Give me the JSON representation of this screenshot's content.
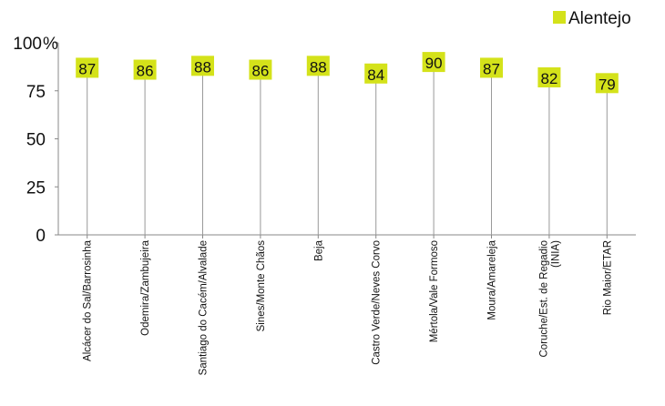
{
  "chart_data": {
    "type": "line",
    "categories": [
      "Alcácer do Sal/Barrosinha",
      "Odemira/Zambujeira",
      "Santiago do Cacém/Alvalade",
      "Sines/Monte Chãos",
      "Beja",
      "Castro Verde/Neves Corvo",
      "Mértola/Vale Formoso",
      "Moura/Amareleja",
      "Coruche/Est. de Regadio (INIA)",
      "Rio Maior/ETAR"
    ],
    "series": [
      {
        "name": "Alentejo",
        "values": [
          87,
          86,
          88,
          86,
          88,
          84,
          90,
          87,
          82,
          79
        ],
        "color": "#d4e21a"
      }
    ],
    "y_unit": "%",
    "ylim": [
      0,
      100
    ],
    "yticks": [
      0,
      25,
      50,
      75,
      100
    ],
    "grid": false,
    "legend_position": "top-right",
    "marker_shape": "square",
    "drop_lines": true
  }
}
